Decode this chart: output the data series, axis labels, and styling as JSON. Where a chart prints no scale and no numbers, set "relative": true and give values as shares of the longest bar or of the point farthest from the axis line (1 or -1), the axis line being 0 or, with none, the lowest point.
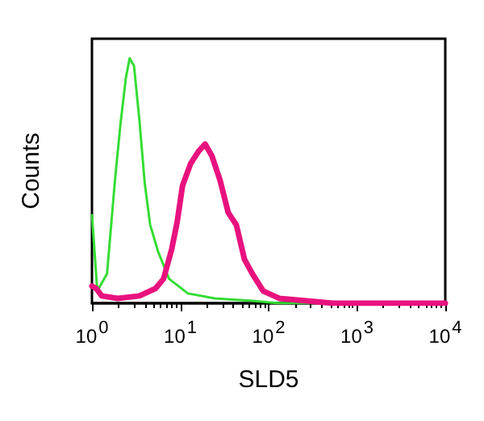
{
  "chart_data": {
    "type": "line",
    "xlabel": "SLD5",
    "ylabel": "Counts",
    "relative": true,
    "log": "x",
    "grid": false,
    "marker": "none",
    "line_style": "solid",
    "xlim": [
      1,
      10000
    ],
    "xticks": [
      {
        "value": 1,
        "label": "10$^{0}$"
      },
      {
        "value": 10,
        "label": "10$^{1}$"
      },
      {
        "value": 100,
        "label": "10$^{2}$"
      },
      {
        "value": 1000,
        "label": "10$^{3}$"
      },
      {
        "value": 10000,
        "label": "10$^{4}$"
      }
    ],
    "series": [
      {
        "color": "#33dd33",
        "x": [
          1,
          1.15,
          1.48,
          1.83,
          2.1,
          2.42,
          2.67,
          2.99,
          3.44,
          3.96,
          4.56,
          5.62,
          7.45,
          12.2,
          24.5,
          65.6,
          132,
          10000
        ],
        "values": [
          0.36,
          0.05,
          0.12,
          0.51,
          0.73,
          0.92,
          1,
          0.97,
          0.75,
          0.49,
          0.32,
          0.21,
          0.1,
          0.04,
          0.02,
          0.01,
          0,
          0
        ]
      },
      {
        "color": "#e8127f",
        "x": [
          1,
          1.12,
          1.29,
          1.96,
          3.44,
          5.24,
          6.47,
          7.99,
          9.2,
          10.6,
          13.1,
          16.1,
          19.1,
          22.9,
          28.3,
          34.9,
          43.1,
          53.2,
          65.6,
          86.9,
          132,
          267,
          537,
          10000
        ],
        "values": [
          0.07,
          0.06,
          0.03,
          0.02,
          0.03,
          0.06,
          0.1,
          0.22,
          0.33,
          0.48,
          0.57,
          0.62,
          0.65,
          0.6,
          0.5,
          0.37,
          0.32,
          0.18,
          0.12,
          0.05,
          0.02,
          0.01,
          0,
          0
        ]
      }
    ]
  }
}
